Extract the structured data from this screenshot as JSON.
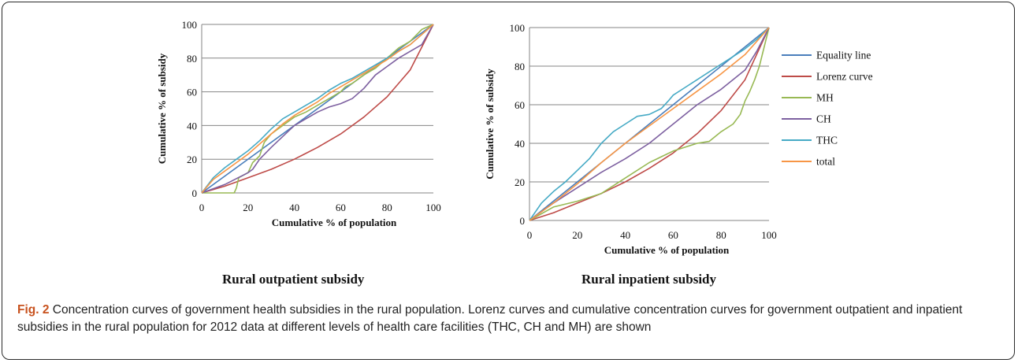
{
  "colors": {
    "equality": "#4a7ebb",
    "lorenz": "#be4b48",
    "mh": "#98b954",
    "ch": "#7d60a0",
    "thc": "#46aac5",
    "total": "#f79646",
    "grid": "#868686"
  },
  "legend": [
    "Equality line",
    "Lorenz curve",
    "MH",
    "CH",
    "THC",
    "total"
  ],
  "caption": {
    "fig_label": "Fig. 2",
    "text": " Concentration curves of government health subsidies in the rural population. Lorenz curves and cumulative concentration curves for government outpatient and inpatient subsidies in the rural population for 2012 data at different levels of health care facilities (THC, CH and MH) are shown"
  },
  "chart_data": [
    {
      "type": "line",
      "title": "Rural outpatient subsidy",
      "xlabel": "Cumulative % of population",
      "ylabel": "Cumulative % of subsidy",
      "xlim": [
        0,
        100
      ],
      "ylim": [
        0,
        100
      ],
      "xticks": [
        "0",
        "20",
        "40",
        "60",
        "80",
        "100"
      ],
      "yticks": [
        "0",
        "20",
        "40",
        "60",
        "80",
        "100"
      ],
      "grid": "horizontal",
      "series": [
        {
          "name": "Equality line",
          "x": [
            0,
            100
          ],
          "y": [
            0,
            100
          ]
        },
        {
          "name": "Lorenz curve",
          "x": [
            0,
            10,
            20,
            30,
            40,
            50,
            60,
            70,
            80,
            90,
            100
          ],
          "y": [
            0,
            4,
            9,
            14,
            20,
            27,
            35,
            45,
            57,
            73,
            100
          ]
        },
        {
          "name": "MH",
          "x": [
            0,
            14,
            15,
            16,
            20,
            22,
            25,
            27,
            30,
            35,
            40,
            45,
            50,
            55,
            60,
            62,
            65,
            70,
            75,
            80,
            85,
            90,
            95,
            100
          ],
          "y": [
            0,
            0,
            3,
            9,
            12,
            18,
            22,
            30,
            35,
            40,
            45,
            48,
            52,
            56,
            60,
            63,
            65,
            70,
            74,
            80,
            86,
            90,
            97,
            100
          ]
        },
        {
          "name": "CH",
          "x": [
            0,
            10,
            20,
            22,
            25,
            30,
            40,
            50,
            55,
            60,
            65,
            70,
            75,
            80,
            85,
            90,
            95,
            100
          ],
          "y": [
            0,
            5,
            12,
            14,
            20,
            27,
            40,
            48,
            51,
            53,
            56,
            62,
            70,
            75,
            80,
            84,
            88,
            100
          ]
        },
        {
          "name": "THC",
          "x": [
            0,
            5,
            10,
            15,
            20,
            25,
            30,
            35,
            40,
            45,
            50,
            55,
            60,
            65,
            70,
            75,
            80,
            85,
            90,
            95,
            100
          ],
          "y": [
            0,
            9,
            15,
            20,
            25,
            31,
            38,
            44,
            48,
            52,
            56,
            61,
            65,
            68,
            72,
            76,
            80,
            84,
            88,
            94,
            100
          ]
        },
        {
          "name": "total",
          "x": [
            0,
            5,
            10,
            15,
            20,
            25,
            30,
            35,
            40,
            45,
            50,
            55,
            60,
            65,
            70,
            75,
            80,
            85,
            90,
            95,
            100
          ],
          "y": [
            0,
            8,
            13,
            18,
            23,
            29,
            35,
            41,
            46,
            50,
            54,
            59,
            63,
            67,
            71,
            75,
            79,
            84,
            88,
            94,
            100
          ]
        }
      ]
    },
    {
      "type": "line",
      "title": "Rural inpatient subsidy",
      "xlabel": "Cumulative % of population",
      "ylabel": "Cumulative % of subsidy",
      "xlim": [
        0,
        100
      ],
      "ylim": [
        0,
        100
      ],
      "xticks": [
        "0",
        "20",
        "40",
        "60",
        "80",
        "100"
      ],
      "yticks": [
        "0",
        "20",
        "40",
        "60",
        "80",
        "100"
      ],
      "grid": "horizontal",
      "legend_position": "right",
      "series": [
        {
          "name": "Equality line",
          "x": [
            0,
            100
          ],
          "y": [
            0,
            100
          ]
        },
        {
          "name": "Lorenz curve",
          "x": [
            0,
            10,
            20,
            30,
            40,
            50,
            60,
            70,
            80,
            90,
            100
          ],
          "y": [
            0,
            4,
            9,
            14,
            20,
            27,
            35,
            45,
            57,
            73,
            100
          ]
        },
        {
          "name": "MH",
          "x": [
            0,
            10,
            20,
            30,
            40,
            50,
            55,
            60,
            65,
            70,
            75,
            80,
            85,
            88,
            90,
            92,
            94,
            96,
            98,
            100
          ],
          "y": [
            0,
            7,
            10,
            14,
            22,
            30,
            33,
            36,
            38,
            40,
            41,
            46,
            50,
            55,
            62,
            67,
            73,
            80,
            90,
            100
          ]
        },
        {
          "name": "CH",
          "x": [
            0,
            10,
            20,
            30,
            40,
            50,
            60,
            70,
            80,
            90,
            95,
            100
          ],
          "y": [
            0,
            9,
            17,
            25,
            32,
            40,
            50,
            60,
            68,
            78,
            88,
            100
          ]
        },
        {
          "name": "THC",
          "x": [
            0,
            5,
            10,
            15,
            20,
            25,
            30,
            35,
            40,
            45,
            50,
            55,
            58,
            60,
            65,
            70,
            75,
            80,
            85,
            90,
            95,
            100
          ],
          "y": [
            0,
            9,
            15,
            20,
            26,
            32,
            40,
            46,
            50,
            54,
            55,
            58,
            62,
            65,
            69,
            73,
            77,
            81,
            85,
            89,
            94,
            100
          ]
        },
        {
          "name": "total",
          "x": [
            0,
            10,
            20,
            30,
            40,
            50,
            60,
            70,
            80,
            90,
            100
          ],
          "y": [
            0,
            9,
            19,
            30,
            40,
            49,
            58,
            67,
            76,
            86,
            100
          ]
        }
      ]
    }
  ]
}
